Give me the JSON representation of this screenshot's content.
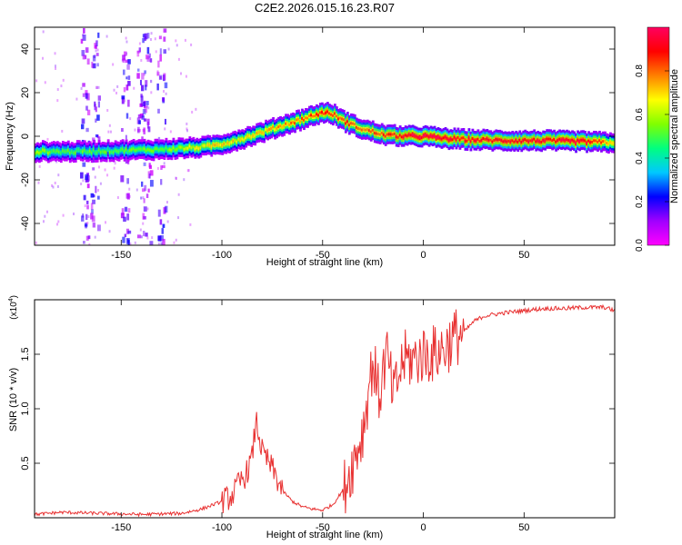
{
  "title": "C2E2.2026.015.16.23.R07",
  "colors": {
    "snr_line": "#e83030",
    "axis": "#000000",
    "colormap": [
      "#ff00ff",
      "#a000ff",
      "#0000ff",
      "#00c8ff",
      "#00ff80",
      "#80ff00",
      "#ffff00",
      "#ff8000",
      "#ff0000",
      "#ff0060"
    ]
  },
  "chart_data": [
    {
      "type": "heatmap",
      "name": "spectrogram",
      "xlabel": "Height of straight line (km)",
      "ylabel": "Frequency (Hz)",
      "xlim": [
        -193,
        95
      ],
      "ylim": [
        -50,
        50
      ],
      "xticks": [
        -150,
        -100,
        -50,
        0,
        50
      ],
      "yticks": [
        -40,
        -20,
        0,
        20,
        40
      ],
      "colorbar": {
        "label": "Normalized spectral amplitude",
        "range": [
          0,
          1
        ],
        "ticks": [
          "0.0",
          "0.2",
          "0.4",
          "0.6",
          "0.8"
        ]
      },
      "ridge": {
        "x": [
          -193,
          -170,
          -150,
          -130,
          -120,
          -110,
          -100,
          -90,
          -80,
          -70,
          -60,
          -50,
          -45,
          -40,
          -35,
          -30,
          -25,
          -22,
          -18,
          -10,
          0,
          10,
          20,
          40,
          60,
          80,
          95
        ],
        "freq": [
          -7,
          -7,
          -6.5,
          -6,
          -5.5,
          -5,
          -3.5,
          -1,
          2,
          5,
          8,
          11,
          10,
          7,
          5,
          3,
          2,
          1,
          0.5,
          0,
          0,
          -1,
          -1.5,
          -2,
          -2,
          -2.5,
          -3
        ],
        "amplitude": [
          0.55,
          0.5,
          0.5,
          0.55,
          0.6,
          0.65,
          0.7,
          0.65,
          0.7,
          0.75,
          0.8,
          0.85,
          0.8,
          0.85,
          0.8,
          0.75,
          0.85,
          0.85,
          0.85,
          0.95,
          0.97,
          0.95,
          0.9,
          0.88,
          0.92,
          0.95,
          0.7
        ]
      },
      "noise_columns_x": [
        -168,
        -163,
        -148,
        -140,
        -137,
        -130
      ]
    },
    {
      "type": "line",
      "name": "snr",
      "xlabel": "Height of straight line (km)",
      "ylabel": "SNR (10 * v/v)",
      "scale_label": "(x10",
      "scale_exponent": "4",
      "scale_close": ")",
      "xlim": [
        -193,
        95
      ],
      "ylim": [
        0,
        2.0
      ],
      "xticks": [
        -150,
        -100,
        -50,
        0,
        50
      ],
      "yticks": [
        "0.5",
        "1.0",
        "1.5"
      ],
      "series": [
        {
          "name": "SNR",
          "x": [
            -193,
            -180,
            -160,
            -140,
            -120,
            -110,
            -100,
            -95,
            -92,
            -88,
            -85,
            -83,
            -80,
            -75,
            -70,
            -65,
            -60,
            -55,
            -50,
            -45,
            -40,
            -35,
            -30,
            -27,
            -25,
            -22,
            -20,
            -18,
            -15,
            -12,
            -10,
            -5,
            0,
            5,
            10,
            15,
            20,
            25,
            30,
            40,
            50,
            60,
            70,
            80,
            90,
            95
          ],
          "y": [
            0.03,
            0.05,
            0.04,
            0.03,
            0.04,
            0.08,
            0.15,
            0.2,
            0.3,
            0.4,
            0.55,
            0.9,
            0.6,
            0.45,
            0.25,
            0.15,
            0.1,
            0.08,
            0.07,
            0.12,
            0.25,
            0.5,
            0.8,
            1.2,
            1.45,
            1.1,
            1.35,
            1.5,
            1.1,
            1.3,
            1.45,
            1.45,
            1.5,
            1.5,
            1.55,
            1.65,
            1.7,
            1.8,
            1.85,
            1.88,
            1.9,
            1.92,
            1.92,
            1.93,
            1.93,
            1.9
          ]
        }
      ]
    }
  ]
}
